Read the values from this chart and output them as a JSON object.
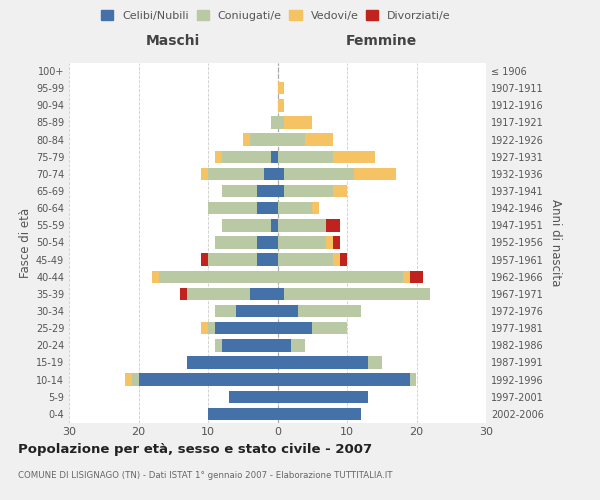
{
  "age_groups": [
    "0-4",
    "5-9",
    "10-14",
    "15-19",
    "20-24",
    "25-29",
    "30-34",
    "35-39",
    "40-44",
    "45-49",
    "50-54",
    "55-59",
    "60-64",
    "65-69",
    "70-74",
    "75-79",
    "80-84",
    "85-89",
    "90-94",
    "95-99",
    "100+"
  ],
  "birth_years": [
    "2002-2006",
    "1997-2001",
    "1992-1996",
    "1987-1991",
    "1982-1986",
    "1977-1981",
    "1972-1976",
    "1967-1971",
    "1962-1966",
    "1957-1961",
    "1952-1956",
    "1947-1951",
    "1942-1946",
    "1937-1941",
    "1932-1936",
    "1927-1931",
    "1922-1926",
    "1917-1921",
    "1912-1916",
    "1907-1911",
    "≤ 1906"
  ],
  "maschi": {
    "celibi": [
      10,
      7,
      20,
      13,
      8,
      9,
      6,
      4,
      0,
      3,
      3,
      1,
      3,
      3,
      2,
      1,
      0,
      0,
      0,
      0,
      0
    ],
    "coniugati": [
      0,
      0,
      1,
      0,
      1,
      1,
      3,
      9,
      17,
      7,
      6,
      7,
      7,
      5,
      8,
      7,
      4,
      1,
      0,
      0,
      0
    ],
    "vedovi": [
      0,
      0,
      1,
      0,
      0,
      1,
      0,
      0,
      1,
      0,
      0,
      0,
      0,
      0,
      1,
      1,
      1,
      0,
      0,
      0,
      0
    ],
    "divorziati": [
      0,
      0,
      0,
      0,
      0,
      0,
      0,
      1,
      0,
      1,
      0,
      0,
      0,
      0,
      0,
      0,
      0,
      0,
      0,
      0,
      0
    ]
  },
  "femmine": {
    "nubili": [
      12,
      13,
      19,
      13,
      2,
      5,
      3,
      1,
      0,
      0,
      0,
      0,
      0,
      1,
      1,
      0,
      0,
      0,
      0,
      0,
      0
    ],
    "coniugate": [
      0,
      0,
      1,
      2,
      2,
      5,
      9,
      21,
      18,
      8,
      7,
      7,
      5,
      7,
      10,
      8,
      4,
      1,
      0,
      0,
      0
    ],
    "vedove": [
      0,
      0,
      0,
      0,
      0,
      0,
      0,
      0,
      1,
      1,
      1,
      0,
      1,
      2,
      6,
      6,
      4,
      4,
      1,
      1,
      0
    ],
    "divorziate": [
      0,
      0,
      0,
      0,
      0,
      0,
      0,
      0,
      2,
      1,
      1,
      2,
      0,
      0,
      0,
      0,
      0,
      0,
      0,
      0,
      0
    ]
  },
  "colors": {
    "celibi": "#4472A8",
    "coniugati": "#B8C9A3",
    "vedovi": "#F5C264",
    "divorziati": "#C0231E"
  },
  "xlim": 30,
  "title": "Popolazione per età, sesso e stato civile - 2007",
  "subtitle": "COMUNE DI LISIGNAGO (TN) - Dati ISTAT 1° gennaio 2007 - Elaborazione TUTTITALIA.IT",
  "xlabel_left": "Maschi",
  "xlabel_right": "Femmine",
  "ylabel_left": "Fasce di età",
  "ylabel_right": "Anni di nascita",
  "bg_color": "#f0f0f0",
  "plot_bg": "#ffffff",
  "grid_color": "#cccccc"
}
